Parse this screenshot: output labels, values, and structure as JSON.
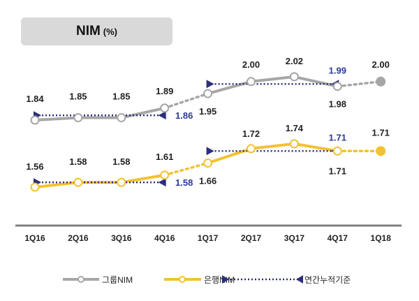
{
  "chart_data": {
    "type": "line",
    "title": "NIM",
    "title_unit": "(%)",
    "categories": [
      "1Q16",
      "2Q16",
      "3Q16",
      "4Q16",
      "1Q17",
      "2Q17",
      "3Q17",
      "4Q17",
      "1Q18"
    ],
    "series": [
      {
        "name": "그룹NIM",
        "color": "#a6a6a6",
        "values": [
          1.84,
          1.85,
          1.85,
          1.89,
          1.95,
          2.0,
          2.02,
          1.98,
          2.0
        ]
      },
      {
        "name": "은행NIM",
        "color": "#f2c230",
        "values": [
          1.56,
          1.58,
          1.58,
          1.61,
          1.66,
          1.72,
          1.74,
          1.71,
          1.71
        ]
      }
    ],
    "annual": {
      "name": "연간누적기준",
      "color": "#2b2f7a",
      "group": [
        {
          "from": "1Q16",
          "to": "4Q16",
          "value": 1.86
        },
        {
          "from": "1Q17",
          "to": "4Q17",
          "value": 1.99
        }
      ],
      "bank": [
        {
          "from": "1Q16",
          "to": "4Q16",
          "value": 1.58
        },
        {
          "from": "1Q17",
          "to": "4Q17",
          "value": 1.71
        }
      ]
    },
    "legend_position": "bottom",
    "grid": false
  }
}
